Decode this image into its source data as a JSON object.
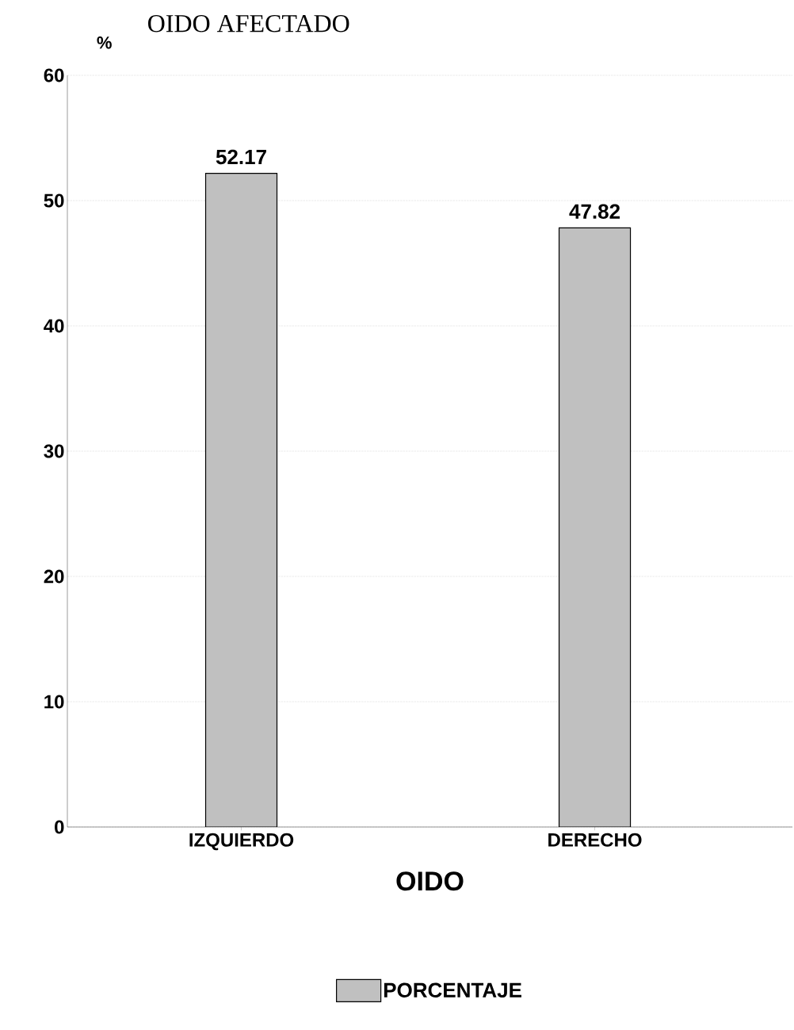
{
  "chart_data": {
    "type": "bar",
    "title": "OIDO AFECTADO",
    "xlabel": "OIDO",
    "ylabel": "%",
    "categories": [
      "IZQUIERDO",
      "DERECHO"
    ],
    "series": [
      {
        "name": "PORCENTAJE",
        "color": "#c0c0c0",
        "values": [
          52.17,
          47.82
        ]
      }
    ],
    "ylim": [
      0,
      60
    ],
    "yticks": [
      0,
      10,
      20,
      30,
      40,
      50,
      60
    ],
    "grid": "y",
    "legend": "bottom",
    "data_labels": true
  }
}
